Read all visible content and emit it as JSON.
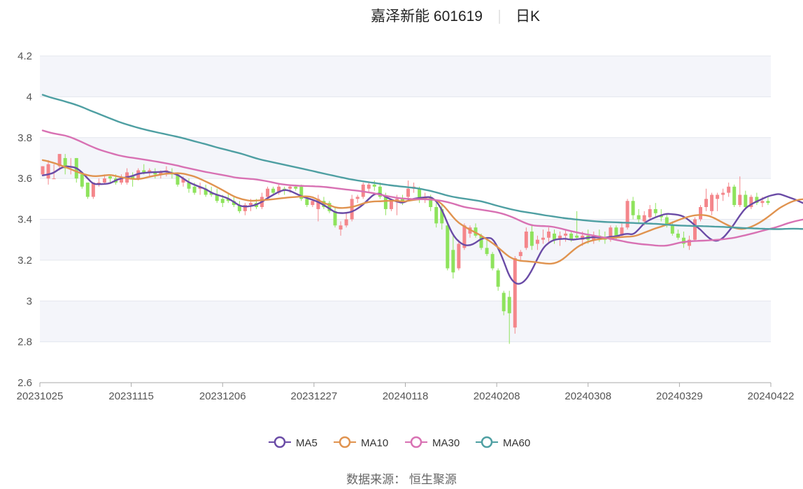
{
  "chart_data": {
    "type": "candlestick",
    "title": "嘉泽新能 601619",
    "subtitle": "日K",
    "ylim": [
      2.6,
      4.2
    ],
    "yticks": [
      "2.6",
      "2.8",
      "3",
      "3.2",
      "3.4",
      "3.6",
      "3.8",
      "4",
      "4.2"
    ],
    "xticks": [
      "20231025",
      "20231115",
      "20231206",
      "20231227",
      "20240118",
      "20240208",
      "20240308",
      "20240329",
      "20240422"
    ],
    "colors": {
      "up": "#f4868b",
      "down": "#8ee35c",
      "ma5": "#6a4ba6",
      "ma10": "#e0934f",
      "ma30": "#d871b3",
      "ma60": "#4e9fa2",
      "band": "#f4f5fa",
      "grid": "#e3e6ee",
      "axis": "#aaaaaa"
    },
    "ohlc": [
      [
        3.62,
        3.66,
        3.62,
        3.66
      ],
      [
        3.6,
        3.69,
        3.57,
        3.67
      ],
      [
        3.6,
        3.67,
        3.6,
        3.6
      ],
      [
        3.66,
        3.72,
        3.64,
        3.72
      ],
      [
        3.7,
        3.72,
        3.62,
        3.65
      ],
      [
        3.66,
        3.7,
        3.62,
        3.66
      ],
      [
        3.7,
        3.7,
        3.58,
        3.6
      ],
      [
        3.62,
        3.62,
        3.55,
        3.56
      ],
      [
        3.58,
        3.58,
        3.5,
        3.51
      ],
      [
        3.51,
        3.58,
        3.5,
        3.58
      ],
      [
        3.58,
        3.6,
        3.56,
        3.58
      ],
      [
        3.58,
        3.62,
        3.57,
        3.6
      ],
      [
        3.61,
        3.62,
        3.58,
        3.6
      ],
      [
        3.6,
        3.62,
        3.57,
        3.58
      ],
      [
        3.58,
        3.62,
        3.57,
        3.6
      ],
      [
        3.58,
        3.65,
        3.57,
        3.63
      ],
      [
        3.61,
        3.63,
        3.56,
        3.6
      ],
      [
        3.6,
        3.65,
        3.59,
        3.64
      ],
      [
        3.64,
        3.67,
        3.62,
        3.63
      ],
      [
        3.63,
        3.65,
        3.61,
        3.64
      ],
      [
        3.63,
        3.65,
        3.6,
        3.62
      ],
      [
        3.62,
        3.64,
        3.6,
        3.63
      ],
      [
        3.63,
        3.66,
        3.61,
        3.64
      ],
      [
        3.63,
        3.65,
        3.6,
        3.62
      ],
      [
        3.62,
        3.63,
        3.56,
        3.57
      ],
      [
        3.58,
        3.61,
        3.56,
        3.6
      ],
      [
        3.58,
        3.6,
        3.53,
        3.55
      ],
      [
        3.56,
        3.58,
        3.52,
        3.53
      ],
      [
        3.55,
        3.58,
        3.52,
        3.56
      ],
      [
        3.55,
        3.57,
        3.51,
        3.52
      ],
      [
        3.53,
        3.56,
        3.51,
        3.52
      ],
      [
        3.52,
        3.55,
        3.48,
        3.49
      ],
      [
        3.5,
        3.52,
        3.46,
        3.48
      ],
      [
        3.5,
        3.53,
        3.48,
        3.49
      ],
      [
        3.49,
        3.51,
        3.46,
        3.47
      ],
      [
        3.47,
        3.49,
        3.43,
        3.44
      ],
      [
        3.44,
        3.48,
        3.42,
        3.47
      ],
      [
        3.47,
        3.5,
        3.44,
        3.48
      ],
      [
        3.48,
        3.5,
        3.45,
        3.46
      ],
      [
        3.46,
        3.53,
        3.45,
        3.51
      ],
      [
        3.51,
        3.56,
        3.5,
        3.55
      ],
      [
        3.55,
        3.56,
        3.52,
        3.53
      ],
      [
        3.53,
        3.57,
        3.52,
        3.56
      ],
      [
        3.55,
        3.56,
        3.52,
        3.54
      ],
      [
        3.55,
        3.57,
        3.53,
        3.56
      ],
      [
        3.56,
        3.57,
        3.54,
        3.55
      ],
      [
        3.56,
        3.57,
        3.49,
        3.5
      ],
      [
        3.5,
        3.51,
        3.46,
        3.47
      ],
      [
        3.47,
        3.5,
        3.46,
        3.49
      ],
      [
        3.45,
        3.52,
        3.39,
        3.5
      ],
      [
        3.49,
        3.51,
        3.45,
        3.46
      ],
      [
        3.48,
        3.49,
        3.43,
        3.44
      ],
      [
        3.44,
        3.46,
        3.36,
        3.37
      ],
      [
        3.35,
        3.39,
        3.32,
        3.37
      ],
      [
        3.37,
        3.43,
        3.36,
        3.4
      ],
      [
        3.4,
        3.52,
        3.39,
        3.5
      ],
      [
        3.5,
        3.52,
        3.48,
        3.51
      ],
      [
        3.51,
        3.58,
        3.5,
        3.57
      ],
      [
        3.55,
        3.58,
        3.53,
        3.57
      ],
      [
        3.57,
        3.59,
        3.54,
        3.56
      ],
      [
        3.56,
        3.58,
        3.5,
        3.51
      ],
      [
        3.51,
        3.53,
        3.42,
        3.45
      ],
      [
        3.45,
        3.5,
        3.44,
        3.49
      ],
      [
        3.49,
        3.52,
        3.42,
        3.5
      ],
      [
        3.5,
        3.52,
        3.47,
        3.48
      ],
      [
        3.51,
        3.59,
        3.5,
        3.55
      ],
      [
        3.55,
        3.58,
        3.53,
        3.56
      ],
      [
        3.55,
        3.56,
        3.48,
        3.5
      ],
      [
        3.5,
        3.53,
        3.48,
        3.51
      ],
      [
        3.51,
        3.52,
        3.44,
        3.46
      ],
      [
        3.46,
        3.48,
        3.36,
        3.38
      ],
      [
        3.45,
        3.47,
        3.35,
        3.38
      ],
      [
        3.37,
        3.38,
        3.15,
        3.16
      ],
      [
        3.25,
        3.32,
        3.11,
        3.14
      ],
      [
        3.16,
        3.3,
        3.15,
        3.28
      ],
      [
        3.26,
        3.38,
        3.25,
        3.37
      ],
      [
        3.33,
        3.37,
        3.31,
        3.36
      ],
      [
        3.36,
        3.38,
        3.31,
        3.32
      ],
      [
        3.32,
        3.33,
        3.25,
        3.26
      ],
      [
        3.26,
        3.3,
        3.22,
        3.23
      ],
      [
        3.23,
        3.24,
        3.15,
        3.16
      ],
      [
        3.15,
        3.16,
        3.05,
        3.07
      ],
      [
        3.04,
        3.05,
        2.93,
        2.95
      ],
      [
        3.02,
        3.05,
        2.79,
        2.94
      ],
      [
        2.87,
        3.22,
        2.84,
        3.21
      ],
      [
        3.22,
        3.25,
        3.2,
        3.24
      ],
      [
        3.26,
        3.36,
        3.25,
        3.34
      ],
      [
        3.34,
        3.37,
        3.25,
        3.27
      ],
      [
        3.28,
        3.32,
        3.25,
        3.3
      ],
      [
        3.3,
        3.35,
        3.28,
        3.31
      ],
      [
        3.31,
        3.36,
        3.29,
        3.34
      ],
      [
        3.33,
        3.35,
        3.28,
        3.3
      ],
      [
        3.3,
        3.34,
        3.27,
        3.32
      ],
      [
        3.32,
        3.35,
        3.29,
        3.33
      ],
      [
        3.33,
        3.34,
        3.29,
        3.3
      ],
      [
        3.32,
        3.44,
        3.3,
        3.31
      ],
      [
        3.3,
        3.34,
        3.27,
        3.32
      ],
      [
        3.32,
        3.35,
        3.28,
        3.3
      ],
      [
        3.3,
        3.34,
        3.28,
        3.32
      ],
      [
        3.32,
        3.35,
        3.29,
        3.31
      ],
      [
        3.31,
        3.34,
        3.28,
        3.3
      ],
      [
        3.3,
        3.37,
        3.29,
        3.36
      ],
      [
        3.36,
        3.37,
        3.3,
        3.32
      ],
      [
        3.32,
        3.38,
        3.31,
        3.36
      ],
      [
        3.36,
        3.5,
        3.35,
        3.49
      ],
      [
        3.49,
        3.51,
        3.4,
        3.42
      ],
      [
        3.42,
        3.45,
        3.38,
        3.4
      ],
      [
        3.39,
        3.44,
        3.37,
        3.42
      ],
      [
        3.41,
        3.47,
        3.4,
        3.45
      ],
      [
        3.45,
        3.48,
        3.41,
        3.43
      ],
      [
        3.42,
        3.45,
        3.39,
        3.41
      ],
      [
        3.41,
        3.43,
        3.36,
        3.37
      ],
      [
        3.37,
        3.39,
        3.32,
        3.33
      ],
      [
        3.33,
        3.35,
        3.3,
        3.31
      ],
      [
        3.31,
        3.34,
        3.26,
        3.28
      ],
      [
        3.27,
        3.32,
        3.25,
        3.3
      ],
      [
        3.3,
        3.41,
        3.29,
        3.4
      ],
      [
        3.4,
        3.47,
        3.39,
        3.46
      ],
      [
        3.46,
        3.55,
        3.44,
        3.5
      ],
      [
        3.44,
        3.53,
        3.42,
        3.52
      ],
      [
        3.5,
        3.53,
        3.44,
        3.52
      ],
      [
        3.52,
        3.55,
        3.49,
        3.53
      ],
      [
        3.53,
        3.58,
        3.51,
        3.56
      ],
      [
        3.56,
        3.57,
        3.46,
        3.47
      ],
      [
        3.47,
        3.61,
        3.46,
        3.52
      ],
      [
        3.52,
        3.54,
        3.45,
        3.46
      ],
      [
        3.46,
        3.52,
        3.45,
        3.51
      ],
      [
        3.51,
        3.53,
        3.47,
        3.48
      ],
      [
        3.48,
        3.51,
        3.46,
        3.49
      ],
      [
        3.49,
        3.51,
        3.47,
        3.48
      ]
    ],
    "series": [
      {
        "name": "MA5",
        "values": [
          3.615,
          3.62,
          3.628,
          3.648,
          3.66,
          3.658,
          3.652,
          3.63,
          3.6,
          3.573,
          3.572,
          3.573,
          3.576,
          3.591,
          3.601,
          3.607,
          3.612,
          3.624,
          3.627,
          3.63,
          3.631,
          3.632,
          3.635,
          3.627,
          3.618,
          3.6,
          3.581,
          3.569,
          3.558,
          3.548,
          3.53,
          3.52,
          3.512,
          3.502,
          3.486,
          3.466,
          3.462,
          3.464,
          3.472,
          3.485,
          3.504,
          3.52,
          3.535,
          3.545,
          3.54,
          3.526,
          3.514,
          3.504,
          3.496,
          3.485,
          3.47,
          3.452,
          3.434,
          3.43,
          3.431,
          3.437,
          3.452,
          3.472,
          3.5,
          3.525,
          3.526,
          3.51,
          3.496,
          3.487,
          3.48,
          3.492,
          3.501,
          3.505,
          3.508,
          3.51,
          3.49,
          3.447,
          3.38,
          3.322,
          3.29,
          3.273,
          3.272,
          3.285,
          3.305,
          3.31,
          3.307,
          3.26,
          3.195,
          3.12,
          3.085,
          3.083,
          3.105,
          3.15,
          3.208,
          3.26,
          3.286,
          3.3,
          3.304,
          3.305,
          3.3,
          3.302,
          3.306,
          3.31,
          3.313,
          3.31,
          3.309,
          3.315,
          3.316,
          3.325,
          3.33,
          3.325,
          3.35,
          3.382,
          3.398,
          3.41,
          3.42,
          3.428,
          3.425,
          3.422,
          3.414,
          3.395,
          3.37,
          3.35,
          3.32,
          3.298,
          3.293,
          3.308,
          3.34,
          3.377,
          3.42,
          3.455,
          3.474,
          3.488,
          3.5,
          3.513,
          3.52,
          3.525,
          3.515,
          3.505,
          3.495,
          3.482,
          3.472
        ]
      },
      {
        "name": "MA10",
        "values": [
          3.69,
          3.684,
          3.676,
          3.667,
          3.656,
          3.646,
          3.634,
          3.624,
          3.616,
          3.611,
          3.612,
          3.615,
          3.618,
          3.612,
          3.606,
          3.601,
          3.598,
          3.597,
          3.601,
          3.609,
          3.614,
          3.619,
          3.624,
          3.625,
          3.626,
          3.624,
          3.617,
          3.61,
          3.598,
          3.585,
          3.572,
          3.558,
          3.543,
          3.527,
          3.512,
          3.502,
          3.495,
          3.49,
          3.492,
          3.494,
          3.496,
          3.498,
          3.502,
          3.505,
          3.508,
          3.509,
          3.512,
          3.513,
          3.509,
          3.495,
          3.48,
          3.47,
          3.458,
          3.455,
          3.457,
          3.46,
          3.468,
          3.478,
          3.485,
          3.488,
          3.488,
          3.49,
          3.491,
          3.491,
          3.487,
          3.49,
          3.495,
          3.498,
          3.5,
          3.498,
          3.495,
          3.475,
          3.445,
          3.41,
          3.382,
          3.365,
          3.349,
          3.335,
          3.32,
          3.302,
          3.284,
          3.262,
          3.238,
          3.215,
          3.203,
          3.196,
          3.195,
          3.192,
          3.189,
          3.185,
          3.182,
          3.184,
          3.195,
          3.215,
          3.24,
          3.263,
          3.279,
          3.291,
          3.298,
          3.303,
          3.306,
          3.309,
          3.311,
          3.313,
          3.315,
          3.316,
          3.324,
          3.335,
          3.345,
          3.356,
          3.364,
          3.374,
          3.384,
          3.396,
          3.406,
          3.414,
          3.42,
          3.422,
          3.42,
          3.412,
          3.398,
          3.383,
          3.369,
          3.358,
          3.352,
          3.354,
          3.363,
          3.376,
          3.392,
          3.412,
          3.433,
          3.455,
          3.47,
          3.484,
          3.494,
          3.498,
          3.5
        ]
      },
      {
        "name": "MA30",
        "values": [
          3.835,
          3.827,
          3.82,
          3.815,
          3.81,
          3.802,
          3.79,
          3.778,
          3.765,
          3.753,
          3.742,
          3.733,
          3.725,
          3.717,
          3.71,
          3.705,
          3.701,
          3.697,
          3.693,
          3.688,
          3.684,
          3.679,
          3.674,
          3.669,
          3.663,
          3.656,
          3.65,
          3.644,
          3.638,
          3.632,
          3.627,
          3.622,
          3.617,
          3.612,
          3.606,
          3.602,
          3.6,
          3.598,
          3.595,
          3.591,
          3.586,
          3.58,
          3.574,
          3.57,
          3.567,
          3.565,
          3.564,
          3.563,
          3.562,
          3.561,
          3.559,
          3.556,
          3.553,
          3.549,
          3.546,
          3.543,
          3.54,
          3.536,
          3.532,
          3.527,
          3.521,
          3.515,
          3.51,
          3.505,
          3.502,
          3.5,
          3.499,
          3.499,
          3.498,
          3.497,
          3.494,
          3.49,
          3.484,
          3.477,
          3.468,
          3.46,
          3.455,
          3.451,
          3.447,
          3.443,
          3.438,
          3.433,
          3.426,
          3.416,
          3.405,
          3.392,
          3.38,
          3.371,
          3.368,
          3.367,
          3.366,
          3.362,
          3.356,
          3.349,
          3.342,
          3.336,
          3.33,
          3.325,
          3.32,
          3.315,
          3.31,
          3.305,
          3.299,
          3.294,
          3.288,
          3.284,
          3.28,
          3.277,
          3.275,
          3.272,
          3.27,
          3.271,
          3.277,
          3.284,
          3.289,
          3.292,
          3.294,
          3.295,
          3.296,
          3.298,
          3.3,
          3.302,
          3.306,
          3.31,
          3.316,
          3.322,
          3.329,
          3.336,
          3.344,
          3.351,
          3.358,
          3.366,
          3.376,
          3.385,
          3.392,
          3.398,
          3.403,
          3.408,
          3.413,
          3.418,
          3.422,
          3.426
        ]
      },
      {
        "name": "MA60",
        "values": [
          4.01,
          4.0,
          3.992,
          3.985,
          3.977,
          3.969,
          3.96,
          3.95,
          3.938,
          3.927,
          3.916,
          3.905,
          3.894,
          3.883,
          3.873,
          3.864,
          3.856,
          3.848,
          3.841,
          3.834,
          3.828,
          3.822,
          3.816,
          3.81,
          3.804,
          3.797,
          3.79,
          3.782,
          3.775,
          3.768,
          3.76,
          3.752,
          3.745,
          3.738,
          3.731,
          3.724,
          3.716,
          3.707,
          3.698,
          3.691,
          3.685,
          3.679,
          3.673,
          3.667,
          3.661,
          3.655,
          3.649,
          3.643,
          3.637,
          3.63,
          3.624,
          3.618,
          3.612,
          3.606,
          3.6,
          3.595,
          3.59,
          3.586,
          3.582,
          3.578,
          3.574,
          3.57,
          3.566,
          3.563,
          3.56,
          3.557,
          3.554,
          3.55,
          3.545,
          3.539,
          3.532,
          3.524,
          3.516,
          3.51,
          3.505,
          3.501,
          3.497,
          3.493,
          3.488,
          3.481,
          3.473,
          3.465,
          3.458,
          3.451,
          3.445,
          3.439,
          3.435,
          3.431,
          3.426,
          3.421,
          3.417,
          3.413,
          3.409,
          3.405,
          3.402,
          3.399,
          3.396,
          3.393,
          3.391,
          3.389,
          3.387,
          3.386,
          3.385,
          3.384,
          3.383,
          3.382,
          3.381,
          3.38,
          3.379,
          3.378,
          3.376,
          3.374,
          3.372,
          3.37,
          3.369,
          3.368,
          3.367,
          3.367,
          3.366,
          3.365,
          3.364,
          3.363,
          3.361,
          3.36,
          3.358,
          3.357,
          3.356,
          3.355,
          3.354,
          3.353,
          3.352,
          3.352,
          3.353,
          3.354,
          3.354,
          3.353,
          3.352,
          3.351,
          3.35,
          3.349
        ]
      }
    ]
  },
  "legend": {
    "ma5": "MA5",
    "ma10": "MA10",
    "ma30": "MA30",
    "ma60": "MA60"
  },
  "footer": {
    "source": "数据来源： 恒生聚源"
  }
}
